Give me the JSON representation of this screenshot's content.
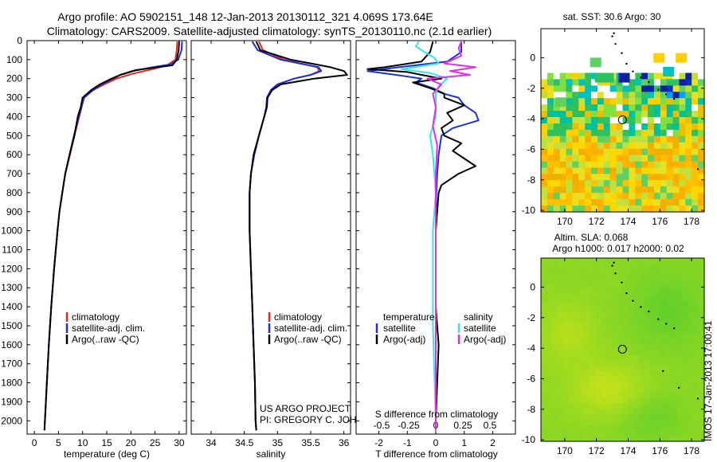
{
  "title_line1": "Argo profile: AO 5902151_148 12-Jan-2013 20130112_321 4.069S 173.64E",
  "title_line2": "Climatology: CARS2009. Satellite-adjusted climatology: synTS_20130110.nc (2.1d earlier)",
  "project_line1": "US ARGO PROJECT",
  "project_line2": "PI: GREGORY C. JOHNSON",
  "side_stamp": "IMOS 17-Jan-2013 17:00:41",
  "colors": {
    "climatology": "#e8281e",
    "satellite": "#1a32d8",
    "argo": "#000000",
    "sat_cyan": "#38e4ec",
    "argo_magenta": "#e030e0"
  },
  "chart_data": [
    {
      "type": "line",
      "name": "temperature",
      "xlabel": "temperature (deg C)",
      "ylabel": "",
      "xlim": [
        -1.5,
        31.5
      ],
      "ylim": [
        2070,
        0
      ],
      "xticks": [
        0,
        5,
        10,
        15,
        20,
        25,
        30
      ],
      "yticks": [
        0,
        100,
        200,
        300,
        400,
        500,
        600,
        700,
        800,
        900,
        1000,
        1100,
        1200,
        1300,
        1400,
        1500,
        1600,
        1700,
        1800,
        1900,
        2000
      ],
      "legend": {
        "position": "lower-left",
        "entries": [
          "climatology",
          "satellite-adj. clim.",
          "Argo(..raw -QC)"
        ]
      },
      "series": [
        {
          "name": "climatology",
          "color": "#e8281e",
          "depth": [
            5,
            50,
            100,
            130,
            150,
            175,
            200,
            230,
            260,
            300,
            400,
            500,
            600,
            700,
            800,
            900,
            1000,
            1200,
            1400,
            1600,
            1800,
            2000,
            2050
          ],
          "values": [
            29.6,
            29.5,
            29.2,
            27.5,
            24.5,
            20.2,
            17.0,
            14.5,
            12.2,
            10.3,
            9.3,
            8.3,
            7.4,
            6.4,
            5.8,
            5.2,
            4.8,
            4.1,
            3.5,
            3.0,
            2.6,
            2.2,
            2.1
          ]
        },
        {
          "name": "satellite-adj. clim.",
          "color": "#1a32d8",
          "depth": [
            5,
            50,
            100,
            125,
            140,
            160,
            180,
            200,
            230,
            260,
            300,
            400,
            500,
            600,
            700,
            800,
            900,
            1000,
            1200,
            1400,
            1600,
            1800,
            2000,
            2050
          ],
          "values": [
            30.6,
            30.5,
            29.8,
            28.2,
            24.5,
            20.5,
            17.8,
            16.3,
            14.0,
            12.2,
            10.3,
            9.2,
            8.2,
            7.3,
            6.4,
            5.8,
            5.2,
            4.8,
            4.1,
            3.5,
            3.0,
            2.6,
            2.2,
            2.1
          ]
        },
        {
          "name": "Argo(..raw -QC)",
          "color": "#000000",
          "depth": [
            5,
            50,
            100,
            130,
            140,
            155,
            180,
            200,
            230,
            260,
            300,
            350,
            400,
            500,
            600,
            700,
            800,
            900,
            1000,
            1200,
            1400,
            1600,
            1800,
            2000,
            2050
          ],
          "values": [
            30.0,
            29.9,
            29.5,
            28.6,
            25.5,
            21.0,
            17.8,
            16.0,
            13.6,
            11.8,
            10.0,
            9.6,
            9.0,
            8.3,
            7.3,
            6.4,
            5.8,
            5.2,
            4.8,
            4.1,
            3.5,
            3.0,
            2.6,
            2.2,
            2.1
          ]
        }
      ]
    },
    {
      "type": "line",
      "name": "salinity",
      "xlabel": "salinity",
      "ylabel": "",
      "xlim": [
        33.7,
        36.1
      ],
      "ylim": [
        2070,
        0
      ],
      "xticks": [
        34,
        34.5,
        35,
        35.5,
        36
      ],
      "ytick_labels": false,
      "legend": {
        "position": "lower-right",
        "entries": [
          "climatology",
          "satellite-adj. clim.",
          "Argo(..raw -QC)"
        ]
      },
      "series": [
        {
          "name": "climatology",
          "color": "#e8281e",
          "depth": [
            5,
            50,
            100,
            140,
            160,
            180,
            200,
            230,
            260,
            300,
            350,
            400,
            500,
            600,
            700,
            800,
            1000,
            1200,
            1400,
            1600,
            1800,
            2000,
            2050
          ],
          "values": [
            34.72,
            34.78,
            35.1,
            35.6,
            35.63,
            35.5,
            35.25,
            35.0,
            34.9,
            34.85,
            34.84,
            34.8,
            34.72,
            34.65,
            34.6,
            34.58,
            34.58,
            34.6,
            34.62,
            34.64,
            34.66,
            34.67,
            34.68
          ]
        },
        {
          "name": "satellite-adj. clim.",
          "color": "#1a32d8",
          "depth": [
            5,
            50,
            100,
            140,
            160,
            180,
            200,
            230,
            260,
            300,
            350,
            400,
            500,
            600,
            700,
            800,
            1000,
            1200,
            1400,
            1600,
            1800,
            2000,
            2050
          ],
          "values": [
            34.62,
            34.7,
            35.05,
            35.62,
            35.66,
            35.5,
            35.25,
            35.0,
            34.9,
            34.84,
            34.83,
            34.8,
            34.72,
            34.65,
            34.6,
            34.58,
            34.58,
            34.6,
            34.62,
            34.64,
            34.66,
            34.67,
            34.68
          ]
        },
        {
          "name": "Argo(..raw -QC)",
          "color": "#000000",
          "depth": [
            5,
            50,
            100,
            140,
            160,
            180,
            200,
            230,
            260,
            300,
            350,
            400,
            500,
            600,
            700,
            800,
            1000,
            1200,
            1400,
            1600,
            1800,
            2000,
            2050
          ],
          "values": [
            34.68,
            34.74,
            35.2,
            35.8,
            36.0,
            36.05,
            35.55,
            35.05,
            34.92,
            34.85,
            34.84,
            34.8,
            34.72,
            34.64,
            34.6,
            34.58,
            34.58,
            34.6,
            34.62,
            34.64,
            34.66,
            34.67,
            34.68
          ]
        }
      ]
    },
    {
      "type": "line",
      "name": "difference",
      "xlabel": "T difference from climatology",
      "x2label": "S difference from climatology",
      "xlim": [
        -2.8,
        2.8
      ],
      "ylim": [
        2070,
        0
      ],
      "xticks": [
        -2,
        -1,
        0,
        1,
        2
      ],
      "x2ticks": [
        -0.5,
        -0.25,
        0,
        0.25,
        0.5
      ],
      "x2tick_labels": [
        "-0.5",
        "-0.25",
        "0",
        "0.25",
        "0.5"
      ],
      "ytick_labels": false,
      "legend": {
        "position": "lower",
        "entries": [
          "temperature",
          "satellite",
          "Argo(-adj)",
          "salinity",
          "satellite",
          "Argo(-adj)"
        ]
      },
      "series": [
        {
          "name": "temperature satellite",
          "color": "#1a32d8",
          "depth": [
            5,
            60,
            110,
            140,
            160,
            180,
            200,
            220,
            250,
            280,
            300,
            340,
            380,
            420,
            460,
            500,
            600,
            700,
            800,
            1000,
            1500,
            2000,
            2050
          ],
          "values": [
            0.9,
            0.9,
            0.4,
            -1.3,
            -2.4,
            -1.4,
            -0.5,
            -0.7,
            -0.1,
            0.3,
            0.8,
            1.0,
            1.4,
            1.5,
            0.6,
            0.2,
            0.1,
            0.05,
            0.02,
            0.0,
            0.0,
            0.0,
            0.0
          ]
        },
        {
          "name": "temperature Argo(-adj)",
          "color": "#000000",
          "depth": [
            5,
            60,
            110,
            140,
            150,
            165,
            180,
            200,
            220,
            250,
            280,
            300,
            340,
            380,
            420,
            460,
            500,
            540,
            580,
            620,
            660,
            700,
            760,
            800,
            900,
            1000,
            1400,
            1600,
            2000,
            2050
          ],
          "values": [
            -0.1,
            -0.2,
            -0.5,
            -1.8,
            -2.4,
            -1.0,
            -0.5,
            0.2,
            -0.8,
            -0.2,
            0.3,
            0.3,
            1.0,
            0.4,
            0.6,
            0.2,
            0.3,
            0.9,
            0.6,
            1.0,
            1.4,
            0.8,
            0.2,
            0.1,
            0.05,
            0.0,
            0.0,
            0.1,
            0.0,
            0.0
          ]
        },
        {
          "name": "salinity satellite",
          "color": "#38e4ec",
          "depth": [
            5,
            30,
            60,
            90,
            120,
            150,
            170,
            200,
            240,
            280,
            320,
            400,
            500,
            600,
            800,
            1000,
            1500,
            2000,
            2050
          ],
          "values": [
            -0.6,
            -0.7,
            -0.4,
            -0.05,
            0.1,
            -1.2,
            -0.2,
            0.4,
            0.1,
            0.0,
            0.0,
            0.0,
            -0.2,
            -0.1,
            0.0,
            -0.1,
            -0.1,
            0.0,
            0.0
          ]
        },
        {
          "name": "salinity Argo(-adj)",
          "color": "#e030e0",
          "depth": [
            5,
            40,
            80,
            120,
            140,
            160,
            180,
            200,
            230,
            280,
            350,
            450,
            550,
            700,
            1000,
            1500,
            2000,
            2050
          ],
          "values": [
            0.9,
            0.8,
            0.9,
            0.3,
            1.4,
            0.5,
            1.2,
            -0.3,
            0.2,
            -0.1,
            0.0,
            -0.1,
            0.05,
            0.0,
            0.0,
            0.0,
            0.0,
            0.0
          ]
        }
      ]
    },
    {
      "type": "heatmap",
      "name": "sst_map",
      "title": "sat. SST: 30.6  Argo: 30",
      "xlim": [
        168.5,
        178.8
      ],
      "ylim": [
        -10.1,
        1.9
      ],
      "xticks": [
        170,
        172,
        174,
        176,
        178
      ],
      "yticks": [
        0,
        -2,
        -4,
        -6,
        -8,
        -10
      ],
      "profile_location": {
        "lon": 173.64,
        "lat": -4.069
      }
    },
    {
      "type": "heatmap",
      "name": "sla_map",
      "title_line1": "Altim. SLA: 0.068",
      "title_line2": "Argo h1000: 0.017 h2000: 0.02",
      "xlim": [
        168.5,
        178.8
      ],
      "ylim": [
        -10.1,
        1.9
      ],
      "xticks": [
        170,
        172,
        174,
        176,
        178
      ],
      "yticks": [
        0,
        -2,
        -4,
        -6,
        -8,
        -10
      ],
      "profile_location": {
        "lon": 173.64,
        "lat": -4.069
      }
    }
  ]
}
